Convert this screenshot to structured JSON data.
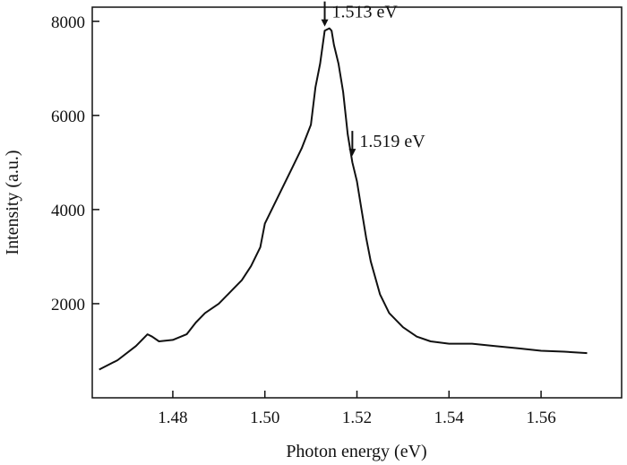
{
  "chart_data": {
    "type": "line",
    "xlabel": "Photon energy (eV)",
    "ylabel": "Intensity (a.u.)",
    "xlim": [
      1.4625,
      1.5775
    ],
    "ylim": [
      0,
      8300
    ],
    "x_ticks": [
      1.48,
      1.5,
      1.52,
      1.54,
      1.56
    ],
    "x_tick_labels": [
      "1.48",
      "1.50",
      "1.52",
      "1.54",
      "1.56"
    ],
    "y_ticks": [
      2000,
      4000,
      6000,
      8000
    ],
    "y_tick_labels": [
      "2000",
      "4000",
      "6000",
      "8000"
    ],
    "grid": false,
    "series": [
      {
        "x": [
          1.464,
          1.468,
          1.472,
          1.4745,
          1.4755,
          1.477,
          1.48,
          1.483,
          1.485,
          1.487,
          1.49,
          1.493,
          1.495,
          1.497,
          1.499,
          1.5,
          1.502,
          1.504,
          1.506,
          1.508,
          1.51,
          1.511,
          1.512,
          1.513,
          1.514,
          1.5145,
          1.515,
          1.516,
          1.517,
          1.518,
          1.519,
          1.52,
          1.521,
          1.522,
          1.523,
          1.525,
          1.527,
          1.53,
          1.533,
          1.536,
          1.54,
          1.545,
          1.55,
          1.555,
          1.56,
          1.565,
          1.57
        ],
        "y": [
          600,
          800,
          1100,
          1350,
          1300,
          1200,
          1230,
          1350,
          1600,
          1800,
          2000,
          2300,
          2500,
          2800,
          3200,
          3700,
          4100,
          4500,
          4900,
          5300,
          5800,
          6600,
          7100,
          7800,
          7850,
          7800,
          7500,
          7100,
          6500,
          5600,
          5000,
          4600,
          4000,
          3400,
          2900,
          2200,
          1800,
          1500,
          1300,
          1200,
          1150,
          1150,
          1100,
          1050,
          1000,
          980,
          950
        ]
      }
    ],
    "annotations": [
      {
        "text": "1.513 eV",
        "x": 1.513,
        "y": 7850
      },
      {
        "text": "1.519 eV",
        "x": 1.519,
        "y": 5100
      }
    ]
  }
}
